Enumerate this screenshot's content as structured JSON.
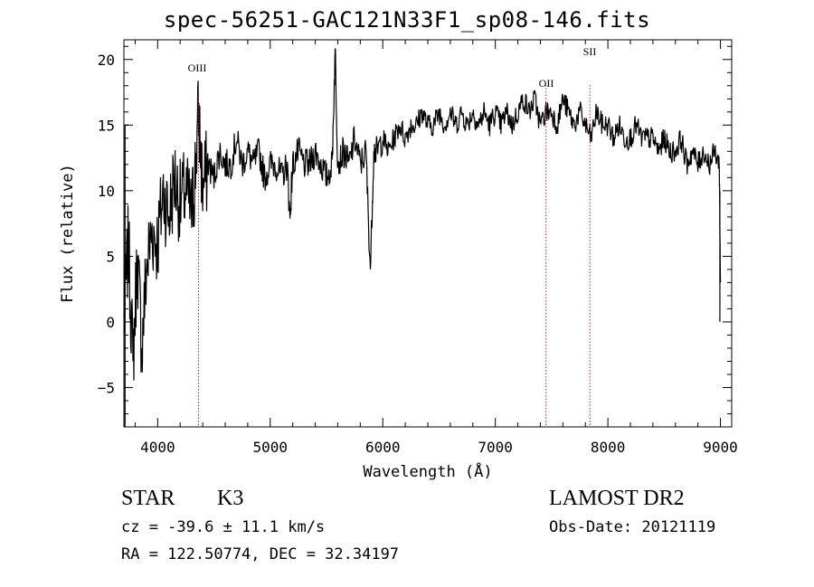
{
  "header": {
    "title": "spec-56251-GAC121N33F1_sp08-146.fits"
  },
  "object": {
    "class": "STAR",
    "subclass": "K3",
    "survey": "LAMOST DR2"
  },
  "info": {
    "cz": "cz = -39.6 ± 11.1 km/s",
    "coords": "RA = 122.50774, DEC =  32.34197",
    "obs_date": "Obs-Date: 20121119"
  },
  "chart_data": {
    "type": "line",
    "title": "spec-56251-GAC121N33F1_sp08-146.fits",
    "xlabel": "Wavelength (Å)",
    "ylabel": "Flux (relative)",
    "xlim": [
      3700,
      9100
    ],
    "ylim": [
      -8,
      21.5
    ],
    "xticks": [
      4000,
      5000,
      6000,
      7000,
      8000,
      9000
    ],
    "yticks": [
      -5,
      0,
      5,
      10,
      15,
      20
    ],
    "line_markers": [
      {
        "label": "OIII",
        "x": 4363
      },
      {
        "label": "OII",
        "x": 7450
      },
      {
        "label": "SII",
        "x": 7840
      }
    ],
    "series": [
      {
        "x": [
          3700,
          3740,
          3780,
          3820,
          3860,
          3900,
          3950,
          4000,
          4050,
          4100,
          4150,
          4200,
          4250,
          4300,
          4330,
          4363,
          4400,
          4450,
          4500,
          4550,
          4600,
          4650,
          4700,
          4750,
          4800,
          4850,
          4900,
          4950,
          5000,
          5050,
          5100,
          5150,
          5175,
          5200,
          5250,
          5300,
          5350,
          5400,
          5450,
          5500,
          5550,
          5577,
          5600,
          5650,
          5700,
          5750,
          5800,
          5850,
          5890,
          5920,
          5950,
          6000,
          6050,
          6100,
          6150,
          6200,
          6250,
          6300,
          6350,
          6400,
          6450,
          6500,
          6550,
          6600,
          6650,
          6700,
          6750,
          6800,
          6850,
          6900,
          6950,
          7000,
          7050,
          7100,
          7150,
          7200,
          7250,
          7300,
          7350,
          7400,
          7450,
          7500,
          7550,
          7600,
          7650,
          7700,
          7750,
          7800,
          7850,
          7900,
          7950,
          8000,
          8050,
          8100,
          8150,
          8200,
          8250,
          8300,
          8350,
          8400,
          8450,
          8500,
          8550,
          8600,
          8650,
          8700,
          8750,
          8800,
          8850,
          8900,
          8950,
          8990,
          9000
        ],
        "y": [
          0,
          6,
          -3,
          5,
          -2,
          4,
          7,
          6,
          10,
          8,
          11,
          9,
          10,
          8,
          11,
          16,
          10,
          12,
          11,
          13,
          12,
          12,
          14,
          12,
          13,
          12,
          13,
          11,
          12,
          12,
          11,
          12,
          8,
          12,
          13,
          12,
          12,
          13,
          12,
          11,
          12,
          20.8,
          12,
          13,
          12,
          14,
          12,
          13,
          4,
          13,
          13,
          14,
          13,
          14,
          15,
          14,
          15,
          15,
          16,
          15,
          15,
          16,
          15,
          16,
          15,
          16,
          15,
          16,
          15,
          16,
          15,
          16,
          15,
          16,
          15,
          16,
          17,
          16,
          17,
          15,
          16,
          16,
          15,
          17,
          16,
          15,
          16,
          15,
          14,
          16,
          15,
          15,
          14,
          15,
          14,
          14,
          15,
          14,
          14,
          14,
          13,
          14,
          13,
          13,
          14,
          12,
          13,
          12,
          13,
          12,
          13,
          12,
          3
        ]
      }
    ]
  }
}
